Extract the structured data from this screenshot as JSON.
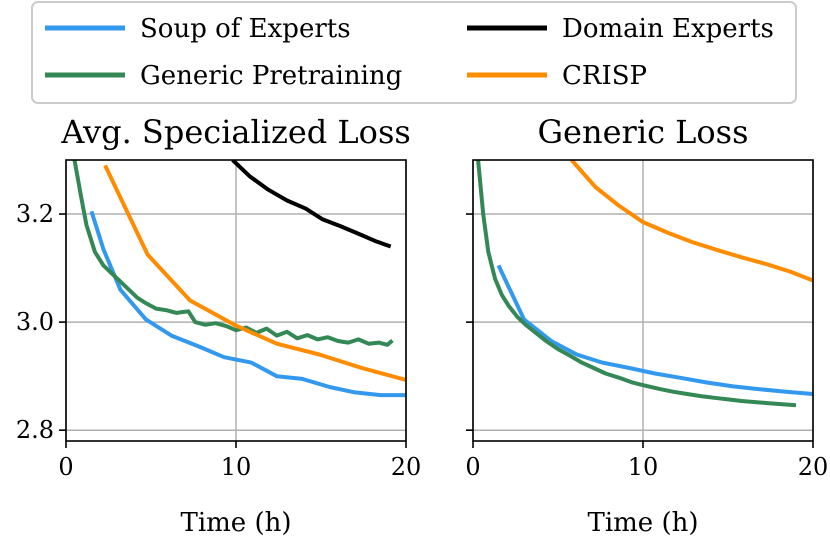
{
  "colors": {
    "soup": "#3399ee",
    "domain": "#000000",
    "generic": "#338855",
    "crisp": "#ff8c00",
    "grid": "#b0b0b0"
  },
  "legend": {
    "items": [
      {
        "key": "soup",
        "label": "Soup of Experts"
      },
      {
        "key": "domain",
        "label": "Domain Experts"
      },
      {
        "key": "generic",
        "label": "Generic Pretraining"
      },
      {
        "key": "crisp",
        "label": "CRISP"
      }
    ]
  },
  "chart_data": [
    {
      "type": "line",
      "title": "Avg. Specialized Loss",
      "xlabel": "Time (h)",
      "ylabel": "",
      "xlim": [
        0,
        20
      ],
      "ylim": [
        2.78,
        3.3
      ],
      "xticks": [
        0,
        10,
        20
      ],
      "xtick_labels": [
        "0",
        "10",
        "20"
      ],
      "yticks": [
        2.8,
        3.0,
        3.2
      ],
      "ytick_labels": [
        "2.8",
        "3.0",
        "3.2"
      ],
      "grid": true,
      "series": [
        {
          "name": "Soup of Experts",
          "key": "soup",
          "x": [
            1.5,
            2.2,
            3.2,
            4.7,
            6.2,
            7.8,
            9.3,
            10.9,
            12.4,
            13.9,
            15.5,
            17.0,
            18.5,
            20.0
          ],
          "y": [
            3.205,
            3.135,
            3.06,
            3.005,
            2.975,
            2.955,
            2.935,
            2.925,
            2.9,
            2.895,
            2.88,
            2.87,
            2.865,
            2.865
          ]
        },
        {
          "name": "Domain Experts",
          "key": "domain",
          "x": [
            9.8,
            10.8,
            11.9,
            13.0,
            14.1,
            15.1,
            16.1,
            17.1,
            18.2,
            19.1
          ],
          "y": [
            3.3,
            3.27,
            3.245,
            3.225,
            3.21,
            3.19,
            3.178,
            3.165,
            3.15,
            3.14
          ]
        },
        {
          "name": "Generic Pretraining",
          "key": "generic",
          "x": [
            0.5,
            0.9,
            1.2,
            1.7,
            2.2,
            2.7,
            3.2,
            3.7,
            4.2,
            4.7,
            5.3,
            5.9,
            6.5,
            7.2,
            7.6,
            8.2,
            8.8,
            9.4,
            10.0,
            10.6,
            11.2,
            11.8,
            12.4,
            13.0,
            13.6,
            14.2,
            14.8,
            15.4,
            16.0,
            16.6,
            17.2,
            17.8,
            18.4,
            18.9,
            19.2
          ],
          "y": [
            3.3,
            3.23,
            3.18,
            3.13,
            3.105,
            3.09,
            3.075,
            3.06,
            3.045,
            3.035,
            3.025,
            3.022,
            3.017,
            3.02,
            3.0,
            2.995,
            2.998,
            2.993,
            2.985,
            2.99,
            2.98,
            2.988,
            2.975,
            2.982,
            2.97,
            2.976,
            2.968,
            2.972,
            2.965,
            2.962,
            2.968,
            2.96,
            2.962,
            2.958,
            2.966
          ]
        },
        {
          "name": "CRISP",
          "key": "crisp",
          "x": [
            2.3,
            4.8,
            7.3,
            9.9,
            12.4,
            14.9,
            17.4,
            20.0
          ],
          "y": [
            3.29,
            3.125,
            3.04,
            2.995,
            2.96,
            2.94,
            2.915,
            2.893
          ]
        }
      ]
    },
    {
      "type": "line",
      "title": "Generic Loss",
      "xlabel": "Time (h)",
      "ylabel": "",
      "xlim": [
        0,
        20
      ],
      "ylim": [
        2.78,
        3.3
      ],
      "xticks": [
        0,
        10,
        20
      ],
      "xtick_labels": [
        "0",
        "10",
        "20"
      ],
      "yticks": [
        2.8,
        3.0,
        3.2
      ],
      "ytick_labels": [
        "",
        "",
        ""
      ],
      "grid": true,
      "series": [
        {
          "name": "Soup of Experts",
          "key": "soup",
          "x": [
            1.5,
            3.0,
            4.6,
            6.1,
            7.6,
            9.2,
            10.7,
            12.2,
            13.8,
            15.3,
            16.8,
            18.4,
            20.0
          ],
          "y": [
            3.105,
            3.005,
            2.965,
            2.94,
            2.925,
            2.915,
            2.905,
            2.897,
            2.888,
            2.881,
            2.876,
            2.871,
            2.867
          ]
        },
        {
          "name": "Generic Pretraining",
          "key": "generic",
          "x": [
            0.3,
            0.6,
            0.9,
            1.3,
            1.7,
            2.1,
            2.6,
            3.1,
            3.7,
            4.3,
            5.0,
            5.7,
            6.4,
            7.1,
            7.8,
            8.6,
            9.4,
            10.2,
            11.0,
            11.8,
            12.6,
            13.4,
            14.2,
            15.0,
            15.8,
            16.6,
            17.4,
            18.2,
            19.0
          ],
          "y": [
            3.3,
            3.2,
            3.13,
            3.08,
            3.05,
            3.03,
            3.01,
            2.995,
            2.98,
            2.965,
            2.95,
            2.938,
            2.925,
            2.915,
            2.905,
            2.897,
            2.888,
            2.882,
            2.876,
            2.871,
            2.867,
            2.863,
            2.86,
            2.857,
            2.854,
            2.852,
            2.85,
            2.848,
            2.846
          ]
        },
        {
          "name": "CRISP",
          "key": "crisp",
          "x": [
            5.8,
            7.2,
            8.6,
            10.0,
            11.5,
            12.9,
            14.4,
            15.8,
            17.3,
            18.7,
            20.0
          ],
          "y": [
            3.3,
            3.25,
            3.215,
            3.185,
            3.165,
            3.148,
            3.133,
            3.12,
            3.107,
            3.093,
            3.077
          ]
        }
      ]
    }
  ]
}
